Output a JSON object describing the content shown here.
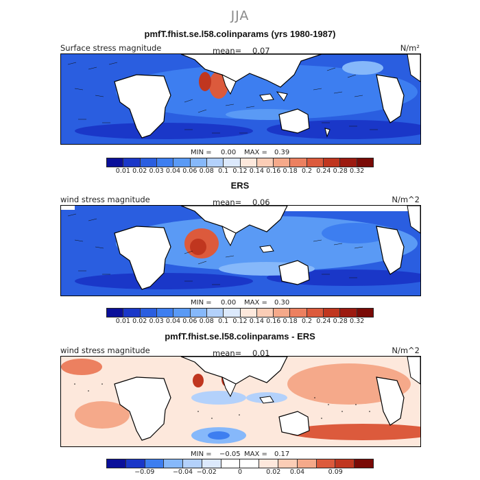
{
  "season": "JJA",
  "panels": [
    {
      "title": "pmfT.fhist.se.l58.colinparams (yrs 1980-1987)",
      "variable": "Surface stress magnitude",
      "mean_label": "mean=",
      "mean_value": "0.07",
      "units": "N/m²",
      "min_label": "MIN =",
      "min_value": "0.00",
      "max_label": "MAX =",
      "max_value": "0.39",
      "colorbar_ticks": [
        "0.01",
        "0.02",
        "0.03",
        "0.04",
        "0.06",
        "0.08",
        "0.1",
        "0.12",
        "0.14",
        "0.16",
        "0.18",
        "0.2",
        "0.24",
        "0.28",
        "0.32"
      ]
    },
    {
      "title": "ERS",
      "variable": "wind stress magnitude",
      "mean_label": "mean=",
      "mean_value": "0.06",
      "units": "N/m^2",
      "min_label": "MIN =",
      "min_value": "0.00",
      "max_label": "MAX =",
      "max_value": "0.30",
      "colorbar_ticks": [
        "0.01",
        "0.02",
        "0.03",
        "0.04",
        "0.06",
        "0.08",
        "0.1",
        "0.12",
        "0.14",
        "0.16",
        "0.18",
        "0.2",
        "0.24",
        "0.28",
        "0.32"
      ]
    },
    {
      "title": "pmfT.fhist.se.l58.colinparams - ERS",
      "variable": "wind stress magnitude",
      "mean_label": "mean=",
      "mean_value": "0.01",
      "units": "N/m^2",
      "min_label": "MIN =",
      "min_value": "−0.05",
      "max_label": "MAX =",
      "max_value": "0.17",
      "colorbar_ticks": [
        "−0.09",
        "−0.04",
        "−0.02",
        "0",
        "0.02",
        "0.04",
        "0.09"
      ]
    }
  ],
  "colors": {
    "magnitude_scale": [
      "#0a0f9a",
      "#1a37c8",
      "#2a5ee0",
      "#3d7ef0",
      "#5a9af5",
      "#86b8fa",
      "#b3d1fb",
      "#dce9fc",
      "#fde8dc",
      "#fbcdb6",
      "#f5a98a",
      "#ec8060",
      "#dc5a3c",
      "#c0361f",
      "#9c1a10",
      "#7a0a06"
    ],
    "difference_scale": [
      "#0a0f9a",
      "#1a37c8",
      "#3d7ef0",
      "#86b8fa",
      "#b3d1fb",
      "#dce9fc",
      "#ffffff",
      "#ffffff",
      "#fde8dc",
      "#fbcdb6",
      "#f5a98a",
      "#dc5a3c",
      "#c0361f",
      "#7a0a06"
    ]
  }
}
